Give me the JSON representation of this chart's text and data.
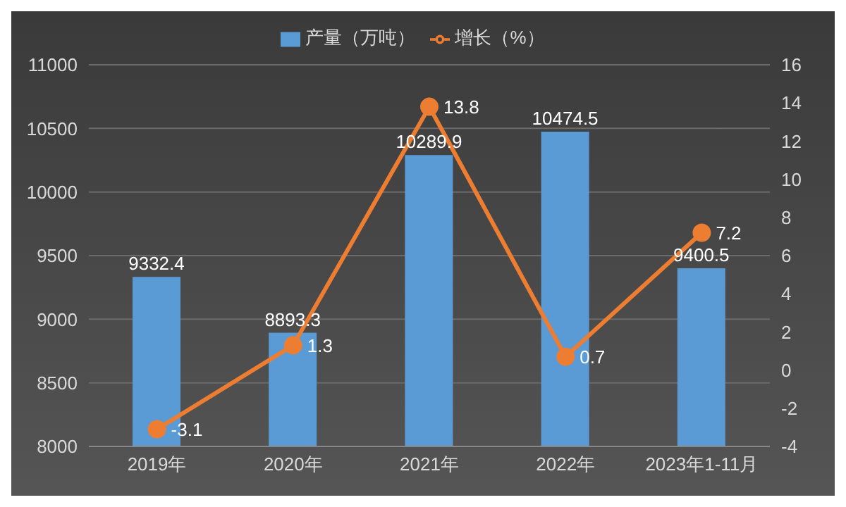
{
  "chart_data": {
    "type": "bar",
    "categories": [
      "2019年",
      "2020年",
      "2021年",
      "2022年",
      "2023年1-11月"
    ],
    "series": [
      {
        "name": "产量（万吨）",
        "color": "#5b9bd5",
        "values": [
          9332.4,
          8893.3,
          10289.9,
          10474.5,
          9400.5
        ]
      },
      {
        "name": "增长（%）",
        "type": "line",
        "axis": "y2",
        "color": "#ed7d31",
        "values": [
          -3.1,
          1.3,
          13.8,
          0.7,
          7.2
        ]
      }
    ],
    "ylim": [
      8000,
      11000
    ],
    "yticks": [
      8000,
      8500,
      9000,
      9500,
      10000,
      10500,
      11000
    ],
    "y2lim": [
      -4,
      16
    ],
    "y2ticks": [
      -4,
      -2,
      0,
      2,
      4,
      6,
      8,
      10,
      12,
      14,
      16
    ],
    "grid": "y",
    "legend": "top",
    "marker": "circle",
    "line_style": "solid",
    "data_labels": true
  }
}
